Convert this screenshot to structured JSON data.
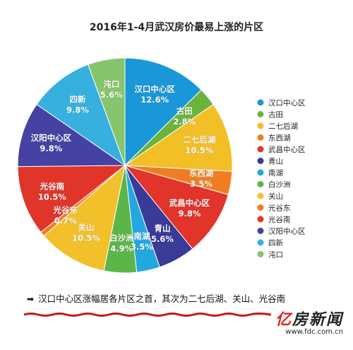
{
  "chart_data": {
    "type": "pie",
    "title": "2016年1-4月武汉房价最易上涨的片区",
    "start": "top",
    "direction": "clockwise",
    "legend_position": "right",
    "slices": [
      {
        "name": "汉口中心区",
        "value": 12.6,
        "label": "12.6%",
        "color": "#1a97d8"
      },
      {
        "name": "古田",
        "value": 2.8,
        "label": "2.8%",
        "color": "#6cb33e"
      },
      {
        "name": "二七后湖",
        "value": 10.5,
        "label": "10.5%",
        "color": "#f2bf26"
      },
      {
        "name": "东西湖",
        "value": 3.5,
        "label": "3.5%",
        "color": "#f07d22"
      },
      {
        "name": "武昌中心区",
        "value": 9.8,
        "label": "9.8%",
        "color": "#e2342b"
      },
      {
        "name": "青山",
        "value": 5.6,
        "label": "5.6%",
        "color": "#3a3a98"
      },
      {
        "name": "南湖",
        "value": 3.5,
        "label": "3.5%",
        "color": "#22a7df"
      },
      {
        "name": "白沙洲",
        "value": 4.9,
        "label": "4.9%",
        "color": "#5cb548"
      },
      {
        "name": "关山",
        "value": 10.5,
        "label": "10.5%",
        "color": "#f2c02a"
      },
      {
        "name": "光谷东",
        "value": 0.7,
        "label": "0.7%",
        "color": "#f27b22"
      },
      {
        "name": "光谷南",
        "value": 10.5,
        "label": "10.5%",
        "color": "#e2352a"
      },
      {
        "name": "汉阳中心区",
        "value": 9.8,
        "label": "9.8%",
        "color": "#4542a3"
      },
      {
        "name": "四新",
        "value": 9.8,
        "label": "9.8%",
        "color": "#37b0e0"
      },
      {
        "name": "沌口",
        "value": 5.6,
        "label": "5.6%",
        "color": "#86c56c"
      }
    ]
  },
  "footnote": {
    "arrow": "➡",
    "text": "汉口中心区涨幅居各片区之首，其次为二七后湖、关山、光谷南"
  },
  "watermark": {
    "brand_part1": "亿",
    "brand_part2": "房新闻",
    "url": "www.fdc.com.cn"
  }
}
